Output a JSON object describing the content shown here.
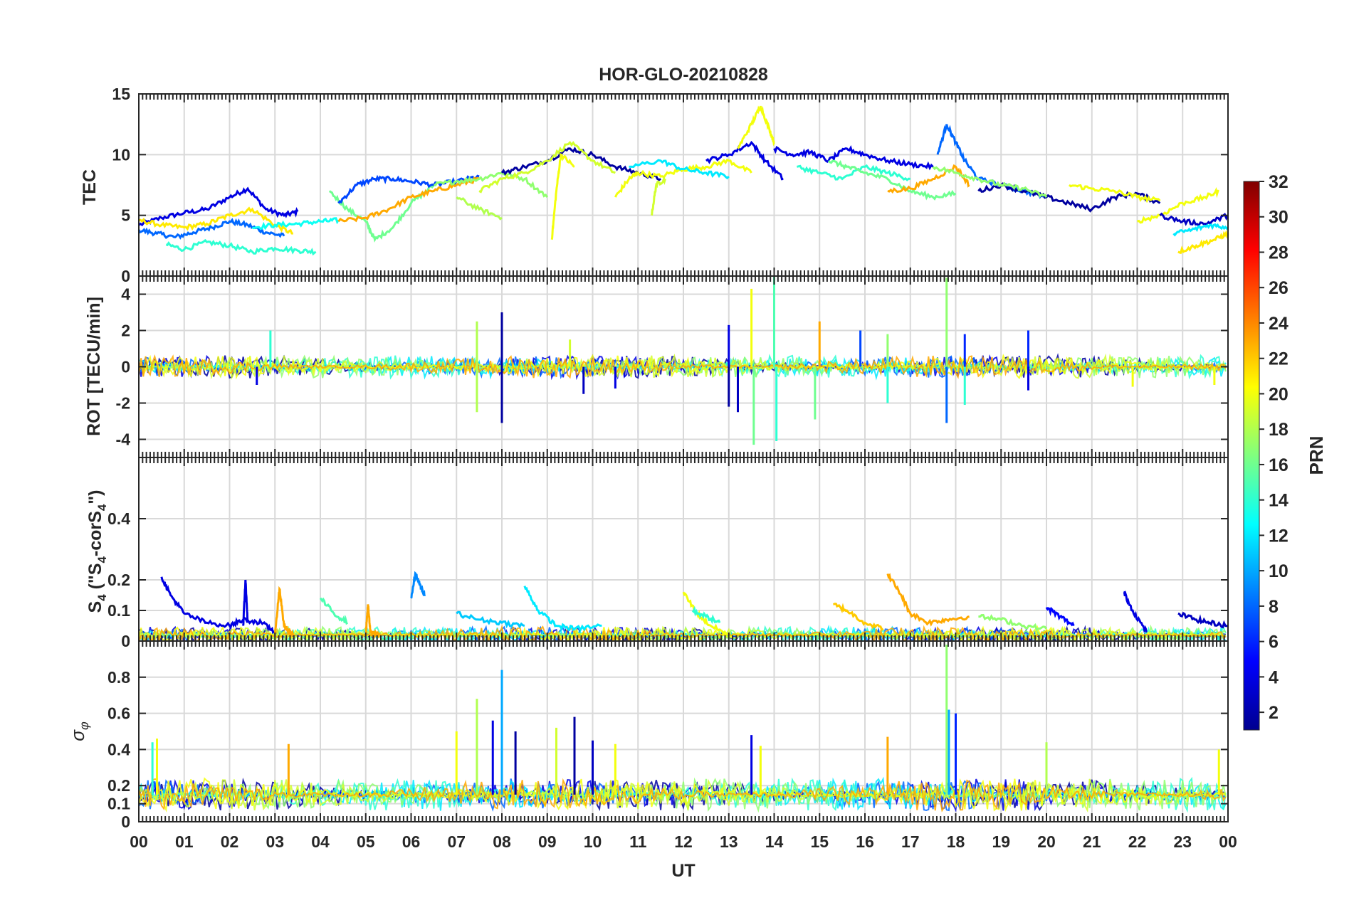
{
  "title": "HOR-GLO-20210828",
  "xlabel": "UT",
  "x_ticks": [
    "00",
    "01",
    "02",
    "03",
    "04",
    "05",
    "06",
    "07",
    "08",
    "09",
    "10",
    "11",
    "12",
    "13",
    "14",
    "15",
    "16",
    "17",
    "18",
    "19",
    "20",
    "21",
    "22",
    "23",
    "00"
  ],
  "colorbar": {
    "label": "PRN",
    "min": 1,
    "max": 32,
    "ticks": [
      "2",
      "4",
      "6",
      "8",
      "10",
      "12",
      "14",
      "16",
      "18",
      "20",
      "22",
      "24",
      "26",
      "28",
      "30",
      "32"
    ],
    "colormap": "jet"
  },
  "chart_data": [
    {
      "type": "line",
      "panel": "TEC",
      "ylabel": "TEC",
      "xlim": [
        0,
        24
      ],
      "ylim": [
        0,
        15
      ],
      "y_ticks": [
        "0",
        "5",
        "10",
        "15"
      ],
      "grid": true,
      "x_unit": "hours UT",
      "series": [
        {
          "prn": 4,
          "x": [
            0,
            0.5,
            1,
            1.5,
            2,
            2.4,
            2.8,
            3.2,
            3.5
          ],
          "y": [
            4.2,
            4.8,
            5.2,
            5.5,
            6.5,
            7.2,
            5.5,
            5.0,
            5.3
          ]
        },
        {
          "prn": 8,
          "x": [
            0,
            0.4,
            0.8,
            1.2,
            1.6,
            2.0,
            2.4,
            2.8,
            3.2
          ],
          "y": [
            3.8,
            3.5,
            3.2,
            3.6,
            4.0,
            4.5,
            4.2,
            3.6,
            3.3
          ]
        },
        {
          "prn": 21,
          "x": [
            0,
            0.5,
            1,
            1.5,
            2,
            2.5,
            3,
            3.4
          ],
          "y": [
            4.6,
            4.2,
            4.0,
            4.3,
            5.0,
            5.5,
            4.2,
            3.5
          ]
        },
        {
          "prn": 14,
          "x": [
            0.6,
            1,
            1.5,
            2,
            2.5,
            3,
            3.5,
            3.9
          ],
          "y": [
            2.6,
            2.2,
            2.8,
            2.5,
            2.0,
            2.3,
            2.1,
            2.0
          ]
        },
        {
          "prn": 13,
          "x": [
            2.5,
            3,
            3.5,
            4,
            4.4
          ],
          "y": [
            4.0,
            4.2,
            4.3,
            4.5,
            4.6
          ]
        },
        {
          "prn": 16,
          "x": [
            4.2,
            4.6,
            5,
            5.2,
            5.6,
            6,
            6.5
          ],
          "y": [
            7.0,
            5.5,
            4.5,
            3.0,
            4.0,
            6.0,
            7.5
          ]
        },
        {
          "prn": 7,
          "x": [
            4.4,
            4.8,
            5.2,
            5.6,
            6.0,
            6.5,
            7.0,
            7.5
          ],
          "y": [
            6.0,
            7.5,
            8.0,
            8.0,
            7.8,
            7.5,
            7.8,
            8.2
          ]
        },
        {
          "prn": 23,
          "x": [
            4.4,
            5,
            5.5,
            6,
            6.5,
            7,
            7.5
          ],
          "y": [
            4.5,
            4.8,
            5.5,
            6.5,
            7.0,
            7.5,
            8.0
          ]
        },
        {
          "prn": 17,
          "x": [
            6.5,
            7,
            7.5,
            8,
            8.5,
            9.0
          ],
          "y": [
            7.5,
            7.8,
            8.0,
            8.5,
            8.0,
            6.5
          ]
        },
        {
          "prn": 2,
          "x": [
            8,
            8.5,
            9,
            9.5,
            10,
            10.5,
            11,
            11.5
          ],
          "y": [
            8.5,
            9.0,
            9.5,
            10.5,
            10.0,
            9.0,
            8.5,
            8.0
          ]
        },
        {
          "prn": 19,
          "x": [
            7.5,
            8,
            8.5,
            9,
            9.5,
            10,
            10.5
          ],
          "y": [
            7.0,
            8.0,
            8.5,
            9.5,
            11.0,
            9.5,
            8.5
          ]
        },
        {
          "prn": 18,
          "x": [
            7,
            7.5,
            8
          ],
          "y": [
            6.5,
            5.5,
            4.8
          ]
        },
        {
          "prn": 20,
          "x": [
            9.1,
            9.2,
            9.3,
            9.6
          ],
          "y": [
            3.0,
            7.0,
            10.0,
            9.0
          ]
        },
        {
          "prn": 20,
          "x": [
            10.5,
            10.8,
            11,
            11.5,
            12,
            12.5,
            13,
            13.5
          ],
          "y": [
            6.5,
            8.0,
            8.5,
            8.2,
            8.8,
            9.0,
            9.5,
            8.5
          ]
        },
        {
          "prn": 12,
          "x": [
            10.8,
            11.5,
            12,
            12.5,
            13.0
          ],
          "y": [
            9.0,
            9.5,
            8.8,
            8.5,
            8.2
          ]
        },
        {
          "prn": 19,
          "x": [
            11.3,
            11.4,
            11.6
          ],
          "y": [
            5.0,
            7.5,
            8.0
          ]
        },
        {
          "prn": 4,
          "x": [
            12.5,
            13,
            13.5,
            13.8,
            14.2
          ],
          "y": [
            9.5,
            10.0,
            11.0,
            9.5,
            8.0
          ]
        },
        {
          "prn": 20,
          "x": [
            13.2,
            13.5,
            13.7,
            13.9,
            14.0
          ],
          "y": [
            10.5,
            12.5,
            14.0,
            12.0,
            11.0
          ]
        },
        {
          "prn": 4,
          "x": [
            14.0,
            14.4,
            14.8,
            15.2,
            15.6,
            16.0,
            16.5,
            17,
            17.5
          ],
          "y": [
            10.5,
            10.0,
            10.2,
            9.5,
            10.5,
            10.0,
            9.5,
            9.2,
            9.0
          ]
        },
        {
          "prn": 14,
          "x": [
            14.5,
            15,
            15.5,
            16,
            16.5,
            17
          ],
          "y": [
            9.0,
            8.5,
            8.0,
            9.0,
            8.5,
            8.0
          ]
        },
        {
          "prn": 16,
          "x": [
            15.2,
            15.6,
            16,
            16.5,
            17.0,
            17.5,
            18.0
          ],
          "y": [
            9.5,
            9.0,
            8.5,
            8.0,
            7.0,
            6.5,
            6.8
          ]
        },
        {
          "prn": 23,
          "x": [
            16.5,
            17.0,
            17.5,
            18.0,
            18.3
          ],
          "y": [
            7.0,
            7.2,
            8.0,
            9.0,
            7.5
          ]
        },
        {
          "prn": 8,
          "x": [
            17.6,
            17.8,
            18.0,
            18.2,
            18.5,
            19,
            19.5,
            20.0
          ],
          "y": [
            10.0,
            12.5,
            11.0,
            9.5,
            8.0,
            7.5,
            7.0,
            6.5
          ]
        },
        {
          "prn": 2,
          "x": [
            18.5,
            19,
            19.5,
            20,
            20.5,
            21,
            21.5,
            22,
            22.5
          ],
          "y": [
            7.0,
            7.5,
            7.0,
            6.5,
            6.0,
            5.5,
            6.5,
            6.8,
            6.0
          ]
        },
        {
          "prn": 17,
          "x": [
            17.5,
            18,
            18.5,
            19,
            19.5,
            20.0
          ],
          "y": [
            9.0,
            8.5,
            8.0,
            7.5,
            7.2,
            6.5
          ]
        },
        {
          "prn": 20,
          "x": [
            20.5,
            21,
            21.5,
            22,
            22.5
          ],
          "y": [
            7.5,
            7.2,
            7.0,
            6.5,
            6.2
          ]
        },
        {
          "prn": 20,
          "x": [
            22,
            22.5,
            23,
            23.5,
            23.8
          ],
          "y": [
            4.5,
            5.0,
            6.0,
            6.5,
            7.0
          ]
        },
        {
          "prn": 3,
          "x": [
            22.5,
            23,
            23.5,
            24
          ],
          "y": [
            5.0,
            4.5,
            4.3,
            5.0
          ]
        },
        {
          "prn": 12,
          "x": [
            22.8,
            23.2,
            23.6,
            24
          ],
          "y": [
            3.5,
            3.8,
            4.2,
            4.0
          ]
        },
        {
          "prn": 21,
          "x": [
            22.9,
            23.3,
            23.7,
            24
          ],
          "y": [
            2.0,
            2.5,
            3.0,
            3.5
          ]
        }
      ]
    },
    {
      "type": "line",
      "panel": "ROT",
      "ylabel": "ROT [TECU/min]",
      "xlim": [
        0,
        24
      ],
      "ylim": [
        -5,
        5
      ],
      "y_ticks": [
        "-4",
        "-2",
        "0",
        "2",
        "4"
      ],
      "grid": true,
      "x_unit": "hours UT",
      "spikes": [
        {
          "x": 2.9,
          "y": 2.0,
          "prn": 14
        },
        {
          "x": 2.6,
          "y": -1.0,
          "prn": 4
        },
        {
          "x": 7.45,
          "y": 2.5,
          "prn": 18
        },
        {
          "x": 7.45,
          "y": -2.5,
          "prn": 18
        },
        {
          "x": 8.0,
          "y": 3.0,
          "prn": 2
        },
        {
          "x": 8.0,
          "y": -3.1,
          "prn": 2
        },
        {
          "x": 9.5,
          "y": 1.5,
          "prn": 19
        },
        {
          "x": 9.8,
          "y": -1.5,
          "prn": 3
        },
        {
          "x": 10.5,
          "y": -1.2,
          "prn": 4
        },
        {
          "x": 13.0,
          "y": 2.3,
          "prn": 4
        },
        {
          "x": 13.0,
          "y": -2.2,
          "prn": 2
        },
        {
          "x": 13.5,
          "y": 4.3,
          "prn": 20
        },
        {
          "x": 13.55,
          "y": -4.3,
          "prn": 16
        },
        {
          "x": 13.2,
          "y": -2.5,
          "prn": 3
        },
        {
          "x": 14.0,
          "y": 5.0,
          "prn": 15
        },
        {
          "x": 14.05,
          "y": -4.1,
          "prn": 14
        },
        {
          "x": 15.0,
          "y": 2.5,
          "prn": 23
        },
        {
          "x": 14.9,
          "y": -2.9,
          "prn": 16
        },
        {
          "x": 15.9,
          "y": 2.0,
          "prn": 7
        },
        {
          "x": 16.5,
          "y": 1.8,
          "prn": 17
        },
        {
          "x": 16.5,
          "y": -2.0,
          "prn": 14
        },
        {
          "x": 17.8,
          "y": 4.9,
          "prn": 17
        },
        {
          "x": 17.8,
          "y": -3.1,
          "prn": 8
        },
        {
          "x": 18.2,
          "y": 1.8,
          "prn": 6
        },
        {
          "x": 18.2,
          "y": -2.1,
          "prn": 14
        },
        {
          "x": 19.6,
          "y": 2.0,
          "prn": 6
        },
        {
          "x": 19.6,
          "y": -1.3,
          "prn": 4
        },
        {
          "x": 21.9,
          "y": -1.1,
          "prn": 20
        },
        {
          "x": 23.7,
          "y": -1.0,
          "prn": 20
        }
      ]
    },
    {
      "type": "line",
      "panel": "S4",
      "ylabel": "S4 (\"S4-corS4\")",
      "xlim": [
        0,
        24
      ],
      "ylim": [
        0,
        0.6
      ],
      "y_ticks": [
        "0",
        "0.1",
        "0.2",
        "0.4"
      ],
      "grid": true,
      "x_unit": "hours UT",
      "series": [
        {
          "prn": 4,
          "x": [
            0.5,
            0.7,
            1.0,
            1.5,
            2.0,
            2.3,
            2.7,
            3.0
          ],
          "y": [
            0.21,
            0.15,
            0.09,
            0.06,
            0.05,
            0.07,
            0.06,
            0.03
          ]
        },
        {
          "prn": 4,
          "x": [
            2.3,
            2.35,
            2.4
          ],
          "y": [
            0.05,
            0.2,
            0.06
          ]
        },
        {
          "prn": 23,
          "x": [
            3.0,
            3.1,
            3.2,
            3.4
          ],
          "y": [
            0.02,
            0.17,
            0.05,
            0.02
          ]
        },
        {
          "prn": 15,
          "x": [
            4.0,
            4.3,
            4.6
          ],
          "y": [
            0.14,
            0.09,
            0.06
          ]
        },
        {
          "prn": 23,
          "x": [
            5.0,
            5.05,
            5.1,
            5.3
          ],
          "y": [
            0.02,
            0.12,
            0.03,
            0.02
          ]
        },
        {
          "prn": 9,
          "x": [
            6.0,
            6.1,
            6.2,
            6.3
          ],
          "y": [
            0.14,
            0.22,
            0.18,
            0.15
          ]
        },
        {
          "prn": 11,
          "x": [
            7.0,
            7.5,
            8.0,
            8.5
          ],
          "y": [
            0.09,
            0.07,
            0.06,
            0.05
          ]
        },
        {
          "prn": 12,
          "x": [
            8.5,
            8.8,
            9.2,
            9.6,
            10.2
          ],
          "y": [
            0.18,
            0.1,
            0.05,
            0.04,
            0.05
          ]
        },
        {
          "prn": 20,
          "x": [
            12.0,
            12.3,
            12.6,
            13.0
          ],
          "y": [
            0.16,
            0.09,
            0.05,
            0.02
          ]
        },
        {
          "prn": 14,
          "x": [
            12.2,
            12.5,
            12.8
          ],
          "y": [
            0.1,
            0.08,
            0.06
          ]
        },
        {
          "prn": 22,
          "x": [
            15.3,
            15.6,
            16.0,
            16.4
          ],
          "y": [
            0.12,
            0.1,
            0.06,
            0.04
          ]
        },
        {
          "prn": 23,
          "x": [
            16.5,
            16.8,
            17.0,
            17.4,
            17.8,
            18.3
          ],
          "y": [
            0.22,
            0.15,
            0.09,
            0.06,
            0.07,
            0.08
          ]
        },
        {
          "prn": 17,
          "x": [
            18.5,
            19.0,
            19.5,
            20.0
          ],
          "y": [
            0.08,
            0.07,
            0.05,
            0.04
          ]
        },
        {
          "prn": 5,
          "x": [
            20.0,
            20.3,
            20.6
          ],
          "y": [
            0.11,
            0.08,
            0.05
          ]
        },
        {
          "prn": 4,
          "x": [
            21.7,
            21.9,
            22.2
          ],
          "y": [
            0.16,
            0.1,
            0.03
          ]
        },
        {
          "prn": 3,
          "x": [
            22.9,
            23.3,
            23.6,
            24.0
          ],
          "y": [
            0.09,
            0.07,
            0.06,
            0.05
          ]
        }
      ]
    },
    {
      "type": "line",
      "panel": "sigma_phi",
      "ylabel": "σφ",
      "xlim": [
        0,
        24
      ],
      "ylim": [
        0,
        1
      ],
      "y_ticks": [
        "0",
        "0.1",
        "0.2",
        "0.4",
        "0.6",
        "0.8"
      ],
      "grid": true,
      "x_unit": "hours UT",
      "spikes": [
        {
          "x": 0.4,
          "y": 0.46,
          "prn": 20
        },
        {
          "x": 0.3,
          "y": 0.44,
          "prn": 14
        },
        {
          "x": 3.3,
          "y": 0.43,
          "prn": 23
        },
        {
          "x": 7.0,
          "y": 0.5,
          "prn": 20
        },
        {
          "x": 7.45,
          "y": 0.68,
          "prn": 18
        },
        {
          "x": 8.0,
          "y": 0.84,
          "prn": 10
        },
        {
          "x": 7.8,
          "y": 0.56,
          "prn": 4
        },
        {
          "x": 8.3,
          "y": 0.5,
          "prn": 2
        },
        {
          "x": 9.2,
          "y": 0.52,
          "prn": 19
        },
        {
          "x": 9.6,
          "y": 0.58,
          "prn": 2
        },
        {
          "x": 10.0,
          "y": 0.45,
          "prn": 3
        },
        {
          "x": 10.5,
          "y": 0.43,
          "prn": 20
        },
        {
          "x": 13.5,
          "y": 0.48,
          "prn": 4
        },
        {
          "x": 13.7,
          "y": 0.42,
          "prn": 20
        },
        {
          "x": 16.5,
          "y": 0.47,
          "prn": 23
        },
        {
          "x": 17.8,
          "y": 0.98,
          "prn": 17
        },
        {
          "x": 17.85,
          "y": 0.62,
          "prn": 10
        },
        {
          "x": 18.0,
          "y": 0.6,
          "prn": 6
        },
        {
          "x": 20.0,
          "y": 0.44,
          "prn": 18
        },
        {
          "x": 23.8,
          "y": 0.4,
          "prn": 20
        }
      ]
    }
  ]
}
